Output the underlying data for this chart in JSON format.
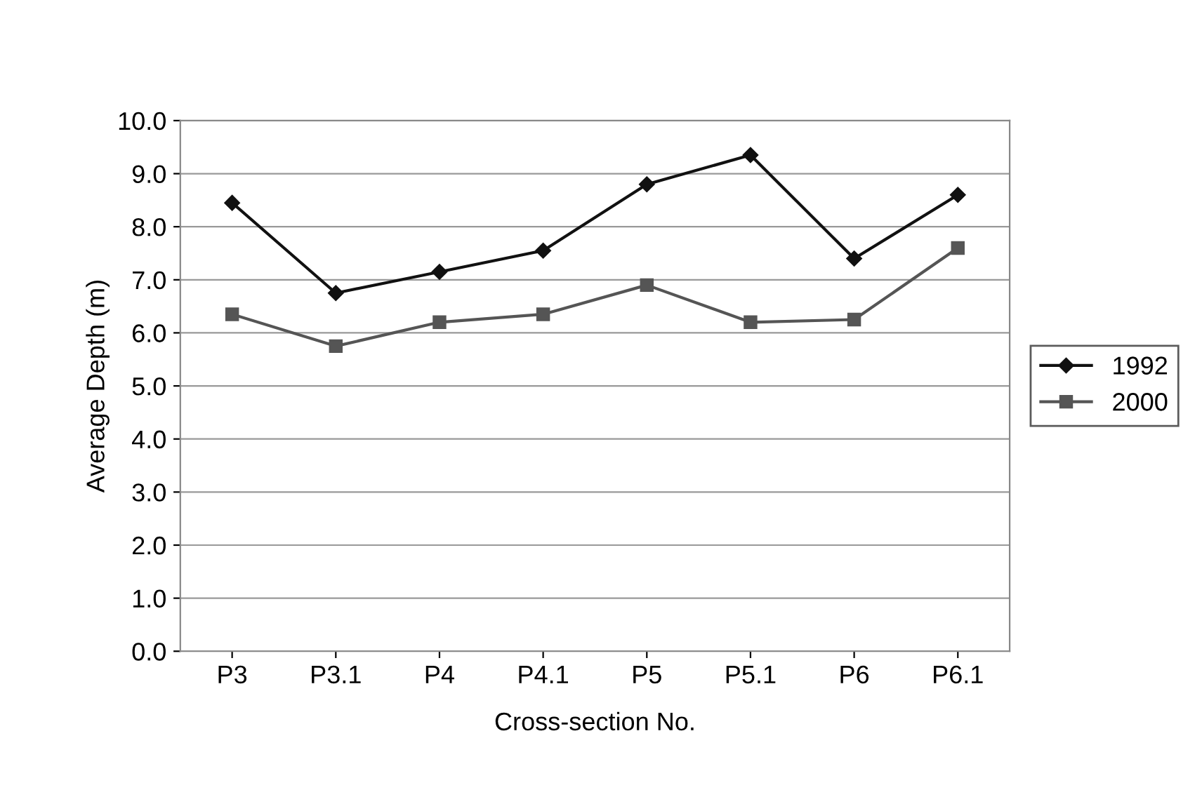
{
  "chart_data": {
    "type": "line",
    "xlabel": "Cross-section No.",
    "ylabel": "Average Depth (m)",
    "categories": [
      "P3",
      "P3.1",
      "P4",
      "P4.1",
      "P5",
      "P5.1",
      "P6",
      "P6.1"
    ],
    "series": [
      {
        "name": "1992",
        "color": "#111111",
        "marker": "diamond",
        "values": [
          8.45,
          6.75,
          7.15,
          7.55,
          8.8,
          9.35,
          7.4,
          8.6
        ]
      },
      {
        "name": "2000",
        "color": "#555555",
        "marker": "square",
        "values": [
          6.35,
          5.75,
          6.2,
          6.35,
          6.9,
          6.2,
          6.25,
          7.6
        ]
      }
    ],
    "ylim": [
      0,
      10
    ],
    "yticks": [
      {
        "value": 0,
        "label": "0.0"
      },
      {
        "value": 1,
        "label": "1.0"
      },
      {
        "value": 2,
        "label": "2.0"
      },
      {
        "value": 3,
        "label": "3.0"
      },
      {
        "value": 4,
        "label": "4.0"
      },
      {
        "value": 5,
        "label": "5.0"
      },
      {
        "value": 6,
        "label": "6.0"
      },
      {
        "value": 7,
        "label": "7.0"
      },
      {
        "value": 8,
        "label": "8.0"
      },
      {
        "value": 9,
        "label": "9.0"
      },
      {
        "value": 10,
        "label": "10.0"
      }
    ],
    "grid": "y",
    "legend": "right",
    "line_style": "solid"
  }
}
